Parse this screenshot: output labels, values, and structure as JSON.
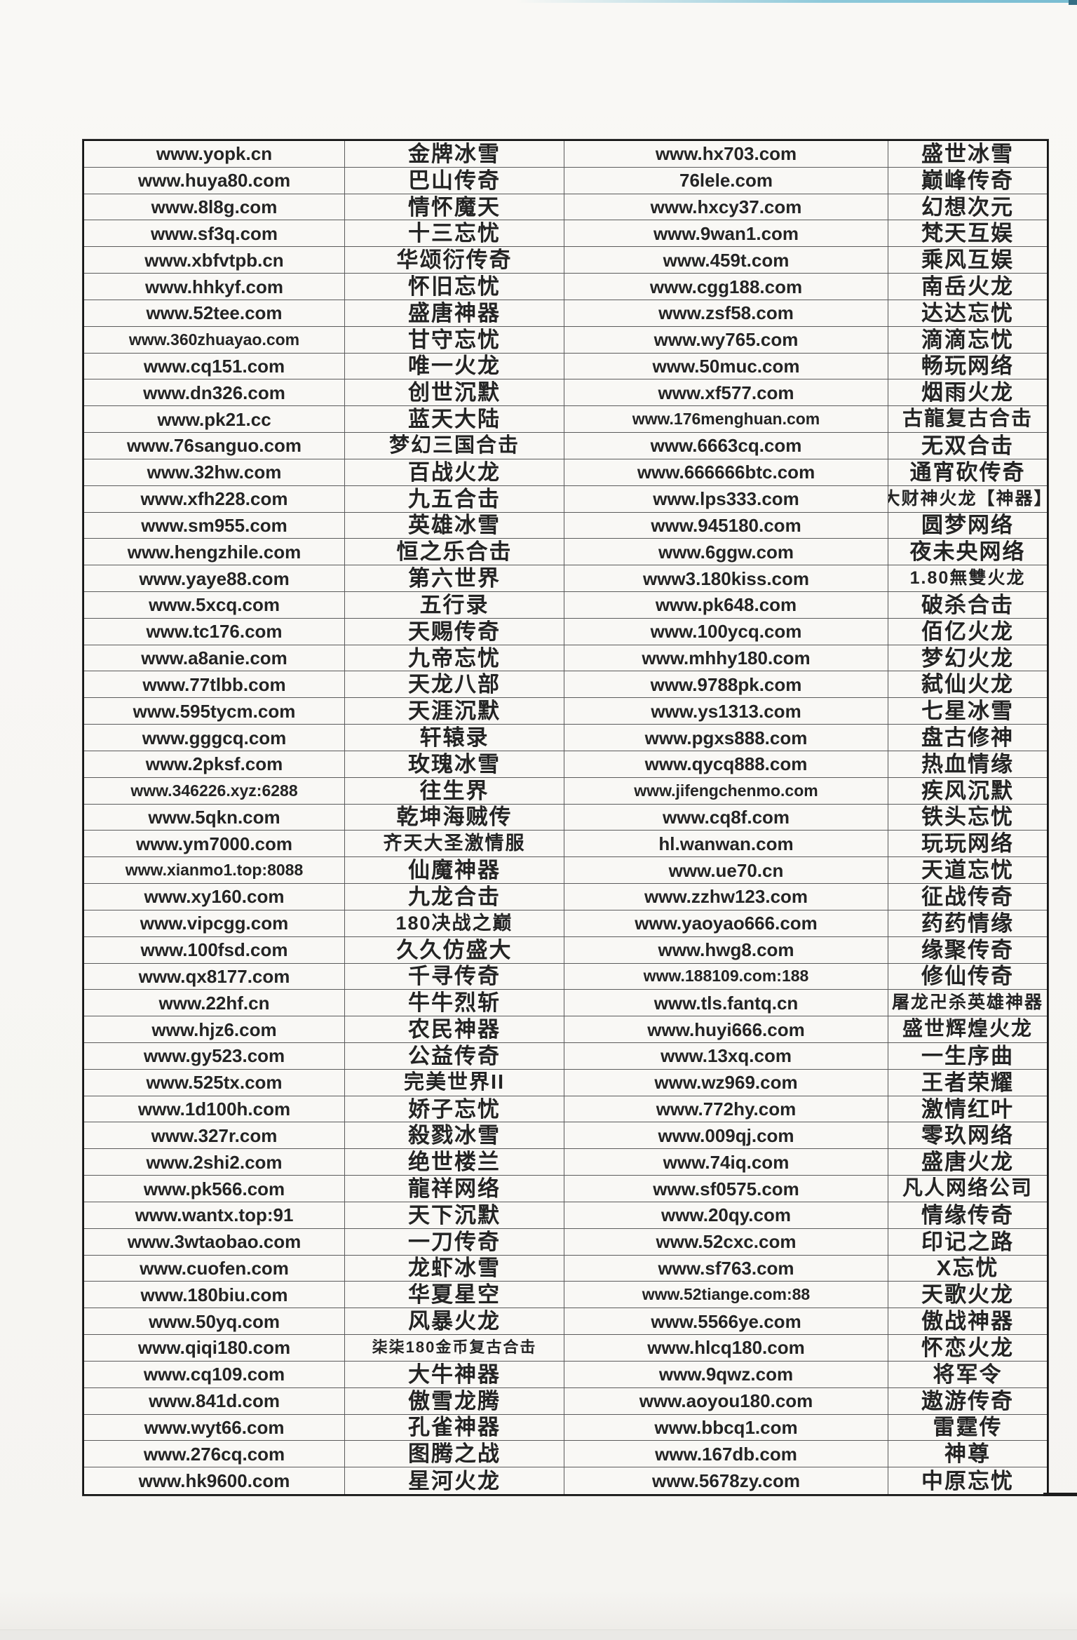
{
  "page": {
    "kind_note": "scanned paper table of game websites",
    "colors": {
      "paper": "#f8f7f4",
      "ink": "#242424",
      "grid_line": "#5b5b5b",
      "outer_border": "#161616",
      "scan_edge_cyan": "#79bdd2",
      "bottom_strip": "#eae9e6"
    }
  },
  "table": {
    "rows": [
      [
        "www.yopk.cn",
        "金牌冰雪",
        "www.hx703.com",
        "盛世冰雪"
      ],
      [
        "www.huya80.com",
        "巴山传奇",
        "76lele.com",
        "巅峰传奇"
      ],
      [
        "www.8l8g.com",
        "情怀魔天",
        "www.hxcy37.com",
        "幻想次元"
      ],
      [
        "www.sf3q.com",
        "十三忘忧",
        "www.9wan1.com",
        "梵天互娱"
      ],
      [
        "www.xbfvtpb.cn",
        "华颂衍传奇",
        "www.459t.com",
        "乘风互娱"
      ],
      [
        "www.hhkyf.com",
        "怀旧忘忧",
        "www.cgg188.com",
        "南岳火龙"
      ],
      [
        "www.52tee.com",
        "盛唐神器",
        "www.zsf58.com",
        "达达忘忧"
      ],
      [
        "www.360zhuayao.com",
        "甘守忘忧",
        "www.wy765.com",
        "滴滴忘忧"
      ],
      [
        "www.cq151.com",
        "唯一火龙",
        "www.50muc.com",
        "畅玩网络"
      ],
      [
        "www.dn326.com",
        "创世沉默",
        "www.xf577.com",
        "烟雨火龙"
      ],
      [
        "www.pk21.cc",
        "蓝天大陆",
        "www.176menghuan.com",
        "古龍复古合击"
      ],
      [
        "www.76sanguo.com",
        "梦幻三国合击",
        "www.6663cq.com",
        "无双合击"
      ],
      [
        "www.32hw.com",
        "百战火龙",
        "www.666666btc.com",
        "通宵砍传奇"
      ],
      [
        "www.xfh228.com",
        "九五合击",
        "www.lps333.com",
        "大财神火龙【神器】"
      ],
      [
        "www.sm955.com",
        "英雄冰雪",
        "www.945180.com",
        "圆梦网络"
      ],
      [
        "www.hengzhile.com",
        "恒之乐合击",
        "www.6ggw.com",
        "夜未央网络"
      ],
      [
        "www.yaye88.com",
        "第六世界",
        "www3.180kiss.com",
        "1.80無雙火龙"
      ],
      [
        "www.5xcq.com",
        "五行录",
        "www.pk648.com",
        "破杀合击"
      ],
      [
        "www.tc176.com",
        "天赐传奇",
        "www.100ycq.com",
        "佰亿火龙"
      ],
      [
        "www.a8anie.com",
        "九帝忘忧",
        "www.mhhy180.com",
        "梦幻火龙"
      ],
      [
        "www.77tlbb.com",
        "天龙八部",
        "www.9788pk.com",
        "弑仙火龙"
      ],
      [
        "www.595tycm.com",
        "天涯沉默",
        "www.ys1313.com",
        "七星冰雪"
      ],
      [
        "www.gggcq.com",
        "轩辕录",
        "www.pgxs888.com",
        "盘古修神"
      ],
      [
        "www.2pksf.com",
        "玫瑰冰雪",
        "www.qycq888.com",
        "热血情缘"
      ],
      [
        "www.346226.xyz:6288",
        "往生界",
        "www.jifengchenmo.com",
        "疾风沉默"
      ],
      [
        "www.5qkn.com",
        "乾坤海贼传",
        "www.cq8f.com",
        "铁头忘忧"
      ],
      [
        "www.ym7000.com",
        "齐天大圣激情服",
        "hl.wanwan.com",
        "玩玩网络"
      ],
      [
        "www.xianmo1.top:8088",
        "仙魔神器",
        "www.ue70.cn",
        "天道忘忧"
      ],
      [
        "www.xy160.com",
        "九龙合击",
        "www.zzhw123.com",
        "征战传奇"
      ],
      [
        "www.vipcgg.com",
        "180决战之巅",
        "www.yaoyao666.com",
        "药药情缘"
      ],
      [
        "www.100fsd.com",
        "久久仿盛大",
        "www.hwg8.com",
        "缘聚传奇"
      ],
      [
        "www.qx8177.com",
        "千寻传奇",
        "www.188109.com:188",
        "修仙传奇"
      ],
      [
        "www.22hf.cn",
        "牛牛烈斩",
        "www.tls.fantq.cn",
        "屠龙卍杀英雄神器"
      ],
      [
        "www.hjz6.com",
        "农民神器",
        "www.huyi666.com",
        "盛世辉煌火龙"
      ],
      [
        "www.gy523.com",
        "公益传奇",
        "www.13xq.com",
        "一生序曲"
      ],
      [
        "www.525tx.com",
        "完美世界II",
        "www.wz969.com",
        "王者荣耀"
      ],
      [
        "www.1d100h.com",
        "娇子忘忧",
        "www.772hy.com",
        "激情红叶"
      ],
      [
        "www.327r.com",
        "殺戮冰雪",
        "www.009qj.com",
        "零玖网络"
      ],
      [
        "www.2shi2.com",
        "绝世楼兰",
        "www.74iq.com",
        "盛唐火龙"
      ],
      [
        "www.pk566.com",
        "龍祥网络",
        "www.sf0575.com",
        "凡人网络公司"
      ],
      [
        "www.wantx.top:91",
        "天下沉默",
        "www.20qy.com",
        "情缘传奇"
      ],
      [
        "www.3wtaobao.com",
        "一刀传奇",
        "www.52cxc.com",
        "印记之路"
      ],
      [
        "www.cuofen.com",
        "龙虾冰雪",
        "www.sf763.com",
        "X忘忧"
      ],
      [
        "www.180biu.com",
        "华夏星空",
        "www.52tiange.com:88",
        "天歌火龙"
      ],
      [
        "www.50yq.com",
        "风暴火龙",
        "www.5566ye.com",
        "傲战神器"
      ],
      [
        "www.qiqi180.com",
        "柒柒180金币复古合击",
        "www.hlcq180.com",
        "怀恋火龙"
      ],
      [
        "www.cq109.com",
        "大牛神器",
        "www.9qwz.com",
        "将军令"
      ],
      [
        "www.841d.com",
        "傲雪龙腾",
        "www.aoyou180.com",
        "遨游传奇"
      ],
      [
        "www.wyt66.com",
        "孔雀神器",
        "www.bbcq1.com",
        "雷霆传"
      ],
      [
        "www.276cq.com",
        "图腾之战",
        "www.167db.com",
        "神尊"
      ],
      [
        "www.hk9600.com",
        "星河火龙",
        "www.5678zy.com",
        "中原忘忧"
      ]
    ]
  }
}
